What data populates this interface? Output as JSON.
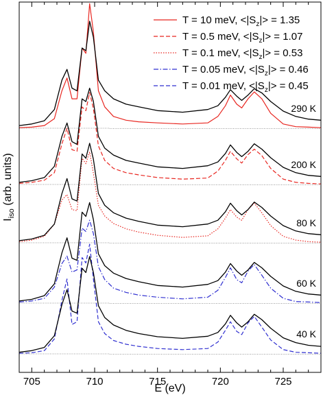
{
  "chart_data": {
    "type": "line",
    "title": "",
    "xlabel": "E (eV)",
    "ylabel": {
      "main": "I",
      "sub": "iso",
      "unit": "(arb. units)"
    },
    "xlim": [
      704,
      728
    ],
    "x_ticks": [
      705,
      710,
      715,
      720,
      725
    ],
    "x_tick_labels": [
      "705",
      "710",
      "715",
      "720",
      "725"
    ],
    "y_ticks_shown": false,
    "legend_position": "top-right",
    "legend": [
      {
        "label_prefix": "T = 10 meV, <|S",
        "label_sub": "z",
        "label_suffix": "|> = 1.35",
        "color": "#e8251f",
        "dash": "solid"
      },
      {
        "label_prefix": "T = 0.5 meV, <|S",
        "label_sub": "z",
        "label_suffix": "|> = 1.07",
        "color": "#e8251f",
        "dash": "dashed"
      },
      {
        "label_prefix": "T = 0.1 meV, <|S",
        "label_sub": "z",
        "label_suffix": "|> = 0.53",
        "color": "#e8251f",
        "dash": "dotted"
      },
      {
        "label_prefix": "T = 0.05 meV, <|S",
        "label_sub": "z",
        "label_suffix": "|> = 0.46",
        "color": "#2f2fd0",
        "dash": "dashdot"
      },
      {
        "label_prefix": "T = 0.01 meV, <|S",
        "label_sub": "z",
        "label_suffix": "|> = 0.45",
        "color": "#2f2fd0",
        "dash": "dashed"
      }
    ],
    "spectrum_x": [
      704,
      705,
      706,
      706.8,
      707.4,
      707.8,
      708.2,
      708.6,
      709.0,
      709.3,
      709.6,
      709.9,
      710.3,
      710.8,
      711.5,
      712.5,
      713.5,
      715,
      717,
      719,
      719.8,
      720.4,
      720.8,
      721.3,
      721.7,
      722.2,
      722.7,
      723.3,
      724,
      725,
      726,
      727,
      728
    ],
    "panels": [
      {
        "label": "290 K",
        "baseline": 0,
        "offset": 0,
        "experiment": [
          0.05,
          0.08,
          0.14,
          0.35,
          0.9,
          1.1,
          0.75,
          0.7,
          1.5,
          1.45,
          2.0,
          1.7,
          0.9,
          0.7,
          0.55,
          0.45,
          0.4,
          0.33,
          0.3,
          0.35,
          0.42,
          0.58,
          0.72,
          0.6,
          0.52,
          0.62,
          0.74,
          0.66,
          0.5,
          0.32,
          0.22,
          0.17,
          0.15
        ],
        "theory": [
          {
            "legend_index": 0,
            "values": [
              0.01,
              0.02,
              0.05,
              0.18,
              0.7,
              0.94,
              0.55,
              0.55,
              1.5,
              1.4,
              2.33,
              1.8,
              0.7,
              0.4,
              0.22,
              0.15,
              0.12,
              0.1,
              0.08,
              0.1,
              0.22,
              0.42,
              0.62,
              0.45,
              0.38,
              0.55,
              0.68,
              0.55,
              0.28,
              0.08,
              0.03,
              0.02,
              0.01
            ]
          }
        ]
      },
      {
        "label": "200 K",
        "baseline": 0,
        "offset": 0,
        "experiment": [
          0.04,
          0.07,
          0.13,
          0.34,
          0.9,
          1.15,
          0.8,
          0.75,
          1.6,
          1.55,
          1.8,
          1.55,
          0.9,
          0.68,
          0.55,
          0.45,
          0.4,
          0.33,
          0.3,
          0.35,
          0.42,
          0.58,
          0.74,
          0.6,
          0.52,
          0.62,
          0.76,
          0.66,
          0.5,
          0.32,
          0.22,
          0.17,
          0.15
        ],
        "theory": [
          {
            "legend_index": 1,
            "values": [
              0.02,
              0.04,
              0.08,
              0.22,
              0.76,
              1.05,
              0.65,
              0.62,
              1.45,
              1.38,
              1.72,
              1.42,
              0.72,
              0.45,
              0.3,
              0.22,
              0.18,
              0.13,
              0.1,
              0.12,
              0.25,
              0.45,
              0.62,
              0.48,
              0.4,
              0.56,
              0.66,
              0.54,
              0.3,
              0.1,
              0.04,
              0.02,
              0.01
            ]
          }
        ]
      },
      {
        "label": "80 K",
        "baseline": 0,
        "offset": 0,
        "experiment": [
          0.04,
          0.07,
          0.14,
          0.35,
          0.92,
          1.2,
          0.82,
          0.78,
          1.66,
          1.58,
          1.86,
          1.56,
          0.92,
          0.7,
          0.56,
          0.46,
          0.4,
          0.33,
          0.3,
          0.35,
          0.42,
          0.58,
          0.74,
          0.6,
          0.52,
          0.62,
          0.76,
          0.66,
          0.5,
          0.32,
          0.22,
          0.17,
          0.15
        ],
        "theory": [
          {
            "legend_index": 2,
            "values": [
              0.02,
              0.05,
              0.12,
              0.35,
              0.8,
              0.9,
              0.62,
              0.6,
              1.58,
              1.48,
              1.7,
              1.3,
              0.7,
              0.5,
              0.36,
              0.26,
              0.2,
              0.14,
              0.1,
              0.13,
              0.26,
              0.46,
              0.62,
              0.48,
              0.42,
              0.62,
              0.74,
              0.56,
              0.32,
              0.12,
              0.05,
              0.02,
              0.01
            ]
          }
        ]
      },
      {
        "label": "60 K",
        "baseline": 0,
        "offset": 0,
        "experiment": [
          0.04,
          0.07,
          0.14,
          0.36,
          0.94,
          1.22,
          0.84,
          0.8,
          1.7,
          1.62,
          1.88,
          1.56,
          0.92,
          0.7,
          0.56,
          0.46,
          0.4,
          0.33,
          0.3,
          0.35,
          0.42,
          0.58,
          0.74,
          0.6,
          0.52,
          0.62,
          0.76,
          0.66,
          0.5,
          0.32,
          0.22,
          0.17,
          0.15
        ],
        "theory": [
          {
            "legend_index": 3,
            "values": [
              0.02,
              0.04,
              0.09,
              0.3,
              0.74,
              0.88,
              0.58,
              0.62,
              1.4,
              1.34,
              1.55,
              1.3,
              0.68,
              0.44,
              0.28,
              0.2,
              0.15,
              0.11,
              0.08,
              0.11,
              0.24,
              0.48,
              0.66,
              0.44,
              0.38,
              0.6,
              0.72,
              0.52,
              0.28,
              0.09,
              0.03,
              0.02,
              0.01
            ]
          }
        ]
      },
      {
        "label": "40 K",
        "baseline": 0,
        "offset": 0,
        "experiment": [
          0.03,
          0.06,
          0.12,
          0.34,
          0.92,
          1.2,
          0.8,
          0.76,
          1.6,
          1.52,
          1.82,
          1.52,
          0.9,
          0.68,
          0.54,
          0.44,
          0.38,
          0.32,
          0.29,
          0.33,
          0.4,
          0.56,
          0.72,
          0.58,
          0.5,
          0.6,
          0.74,
          0.64,
          0.48,
          0.3,
          0.21,
          0.16,
          0.14
        ],
        "theory": [
          {
            "legend_index": 4,
            "values": [
              0.01,
              0.02,
              0.06,
              0.28,
              1.0,
              1.4,
              0.55,
              0.6,
              1.8,
              1.7,
              2.05,
              1.4,
              0.6,
              0.38,
              0.25,
              0.18,
              0.14,
              0.1,
              0.08,
              0.1,
              0.22,
              0.44,
              0.6,
              0.42,
              0.36,
              0.58,
              0.7,
              0.5,
              0.26,
              0.08,
              0.03,
              0.02,
              0.01
            ]
          }
        ]
      }
    ],
    "baseline_segments": [
      [
        704,
        711.2
      ],
      [
        711.2,
        728
      ]
    ]
  }
}
